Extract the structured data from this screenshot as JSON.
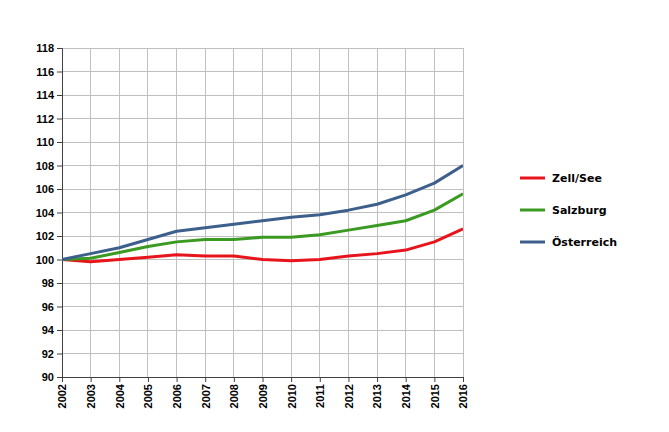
{
  "chart_data": {
    "type": "line",
    "x": [
      2002,
      2003,
      2004,
      2005,
      2006,
      2007,
      2008,
      2009,
      2010,
      2011,
      2012,
      2013,
      2014,
      2015,
      2016
    ],
    "series": [
      {
        "name": "Zell/See",
        "color": "#e8141b",
        "values": [
          100,
          99.8,
          100.0,
          100.2,
          100.4,
          100.3,
          100.3,
          100.0,
          99.9,
          100.0,
          100.3,
          100.5,
          100.8,
          101.5,
          102.6
        ]
      },
      {
        "name": "Salzburg",
        "color": "#3a9a22",
        "values": [
          100,
          100.1,
          100.6,
          101.1,
          101.5,
          101.7,
          101.7,
          101.9,
          101.9,
          102.1,
          102.5,
          102.9,
          103.3,
          104.2,
          105.6
        ]
      },
      {
        "name": "Österreich",
        "color": "#3c5f8c",
        "values": [
          100,
          100.5,
          101.0,
          101.7,
          102.4,
          102.7,
          103.0,
          103.3,
          103.6,
          103.8,
          104.2,
          104.7,
          105.5,
          106.5,
          108.0
        ]
      }
    ],
    "xlim": [
      2002,
      2016
    ],
    "xticks": [
      2002,
      2003,
      2004,
      2005,
      2006,
      2007,
      2008,
      2009,
      2010,
      2011,
      2012,
      2013,
      2014,
      2015,
      2016
    ],
    "ylim": [
      90,
      118
    ],
    "yticks": [
      90,
      92,
      94,
      96,
      98,
      100,
      102,
      104,
      106,
      108,
      110,
      112,
      114,
      116,
      118
    ],
    "grid": true,
    "legend": "right"
  }
}
